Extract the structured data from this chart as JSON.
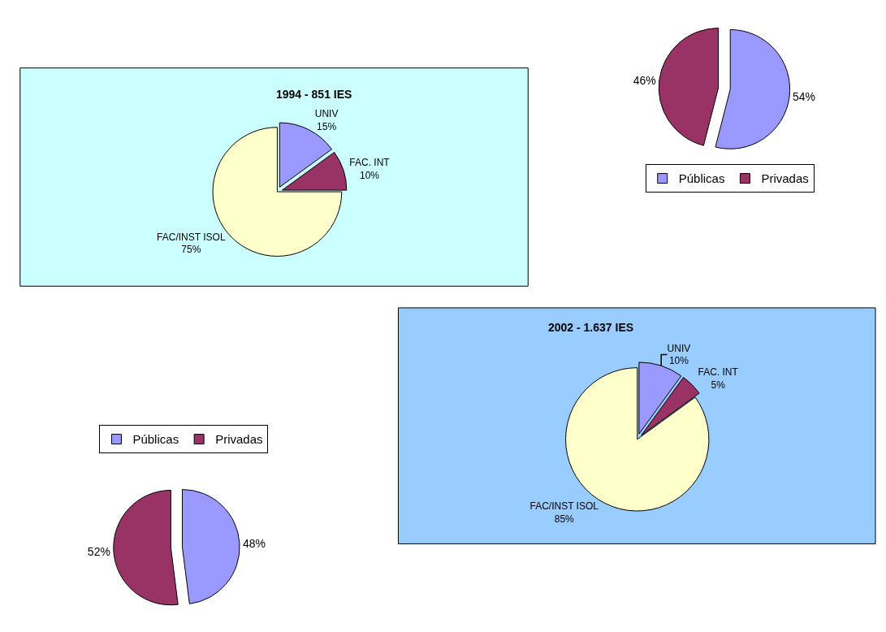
{
  "chart_data": [
    {
      "type": "pie",
      "title": "1994 - 851 IES",
      "categories": [
        "UNIV",
        "FAC. INT",
        "FAC/INST ISOL"
      ],
      "values": [
        15,
        10,
        75
      ],
      "value_labels": [
        "15%",
        "10%",
        "75%"
      ],
      "colors": [
        "#9999ff",
        "#993366",
        "#ffffcc"
      ],
      "legend": false
    },
    {
      "type": "pie",
      "categories": [
        "Públicas",
        "Privadas"
      ],
      "values": [
        54,
        46
      ],
      "value_labels": [
        "54%",
        "46%"
      ],
      "colors": [
        "#9999ff",
        "#993366"
      ],
      "legend": "bottom"
    },
    {
      "type": "pie",
      "title": "2002 - 1.637 IES",
      "categories": [
        "UNIV",
        "FAC. INT",
        "FAC/INST ISOL"
      ],
      "values": [
        10,
        5,
        85
      ],
      "value_labels": [
        "10%",
        "5%",
        "85%"
      ],
      "colors": [
        "#9999ff",
        "#993366",
        "#ffffcc"
      ],
      "legend": false
    },
    {
      "type": "pie",
      "categories": [
        "Públicas",
        "Privadas"
      ],
      "values": [
        48,
        52
      ],
      "value_labels": [
        "48%",
        "52%"
      ],
      "colors": [
        "#9999ff",
        "#993366"
      ],
      "legend": "top"
    }
  ]
}
